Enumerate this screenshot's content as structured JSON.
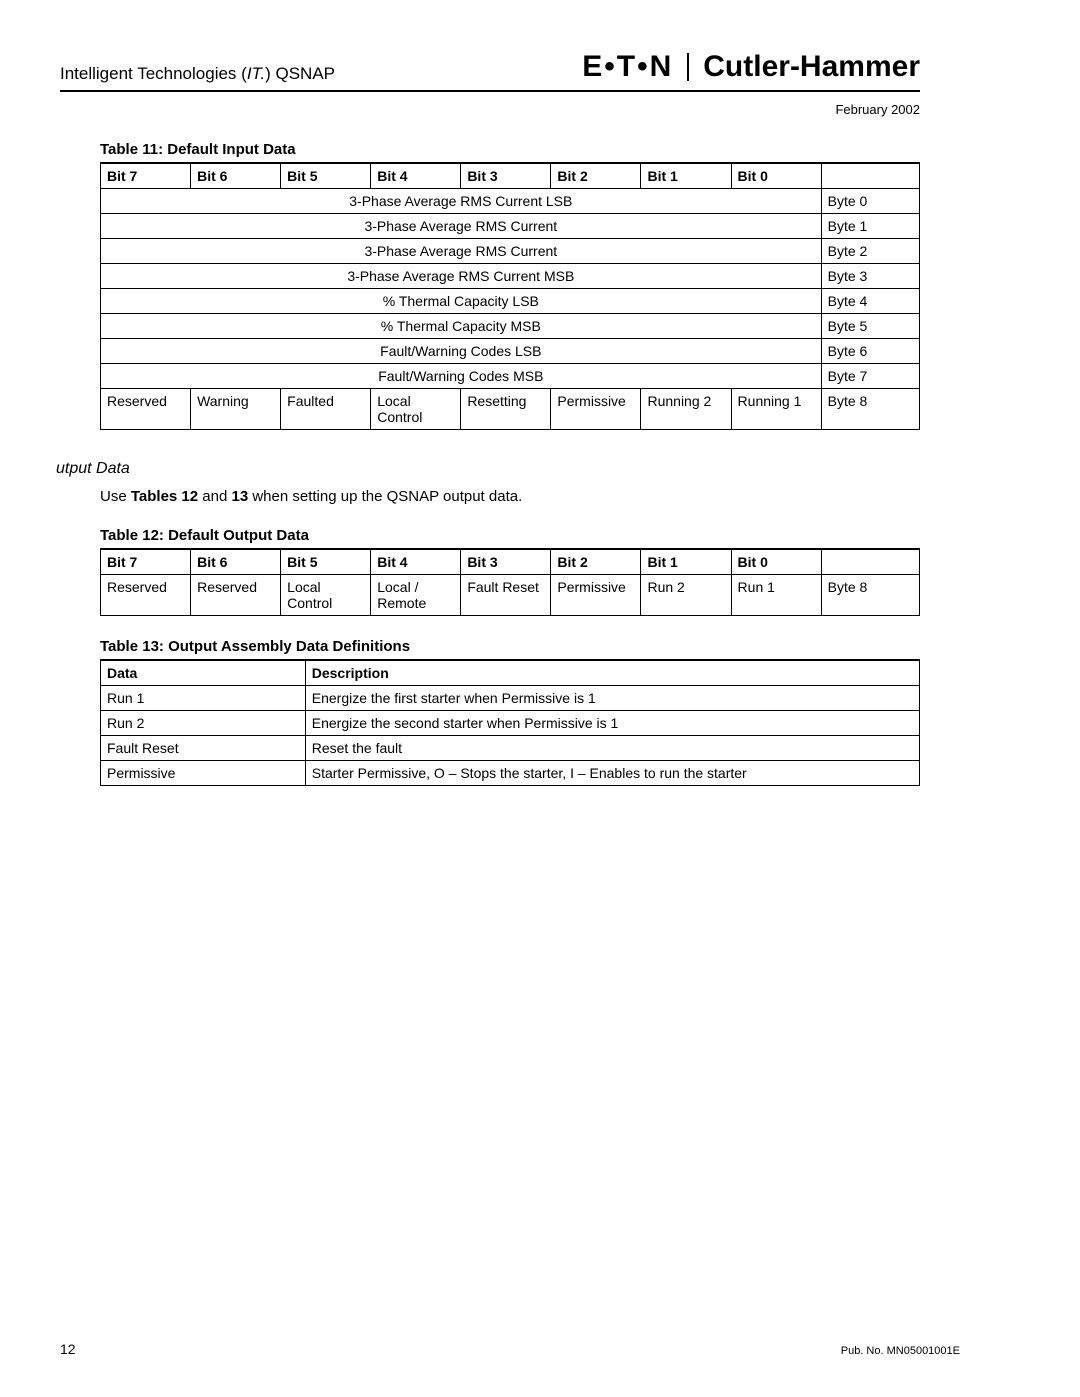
{
  "header": {
    "doc_title_prefix": "Intelligent Technologies (",
    "doc_title_it": "IT.",
    "doc_title_suffix": ") QSNAP",
    "brand1": "E•T•N",
    "brand2": "Cutler-Hammer",
    "date": "February 2002"
  },
  "table11": {
    "caption": "Table 11: Default Input Data",
    "headers": [
      "Bit 7",
      "Bit 6",
      "Bit 5",
      "Bit 4",
      "Bit 3",
      "Bit 2",
      "Bit 1",
      "Bit 0",
      ""
    ],
    "rows": [
      {
        "span": "3-Phase Average RMS Current LSB",
        "byte": "Byte 0"
      },
      {
        "span": "3-Phase Average RMS Current",
        "byte": "Byte 1"
      },
      {
        "span": "3-Phase Average RMS Current",
        "byte": "Byte 2"
      },
      {
        "span": "3-Phase Average RMS Current MSB",
        "byte": "Byte 3"
      },
      {
        "span": "% Thermal Capacity LSB",
        "byte": "Byte 4"
      },
      {
        "span": "% Thermal Capacity MSB",
        "byte": "Byte 5"
      },
      {
        "span": "Fault/Warning Codes LSB",
        "byte": "Byte 6"
      },
      {
        "span": "Fault/Warning Codes MSB",
        "byte": "Byte 7"
      }
    ],
    "byte8": {
      "cells": [
        "Reserved",
        "Warning",
        "Faulted",
        "Local Control",
        "Resetting",
        "Permissive",
        "Running 2",
        "Running 1"
      ],
      "byte": "Byte 8"
    }
  },
  "section_output": {
    "heading": "utput Data",
    "p_pre": "Use ",
    "p_bold": "Tables 12",
    "p_mid": " and ",
    "p_bold2": "13",
    "p_post": " when setting up the QSNAP output data."
  },
  "table12": {
    "caption": "Table 12: Default Output Data",
    "headers": [
      "Bit 7",
      "Bit 6",
      "Bit 5",
      "Bit 4",
      "Bit 3",
      "Bit 2",
      "Bit 1",
      "Bit 0",
      ""
    ],
    "row": {
      "cells": [
        "Reserved",
        "Reserved",
        "Local Control",
        "Local / Remote",
        "Fault Reset",
        "Permissive",
        "Run 2",
        "Run 1"
      ],
      "byte": "Byte 8"
    }
  },
  "table13": {
    "caption": "Table 13: Output Assembly Data Definitions",
    "headers": [
      "Data",
      "Description"
    ],
    "rows": [
      [
        "Run 1",
        "Energize the first starter when Permissive is 1"
      ],
      [
        "Run 2",
        "Energize the second starter when Permissive is 1"
      ],
      [
        "Fault Reset",
        "Reset the fault"
      ],
      [
        "Permissive",
        "Starter Permissive, O – Stops the starter, I – Enables to run the starter"
      ]
    ]
  },
  "footer": {
    "page": "12",
    "pub": "Pub. No. MN05001001E"
  }
}
